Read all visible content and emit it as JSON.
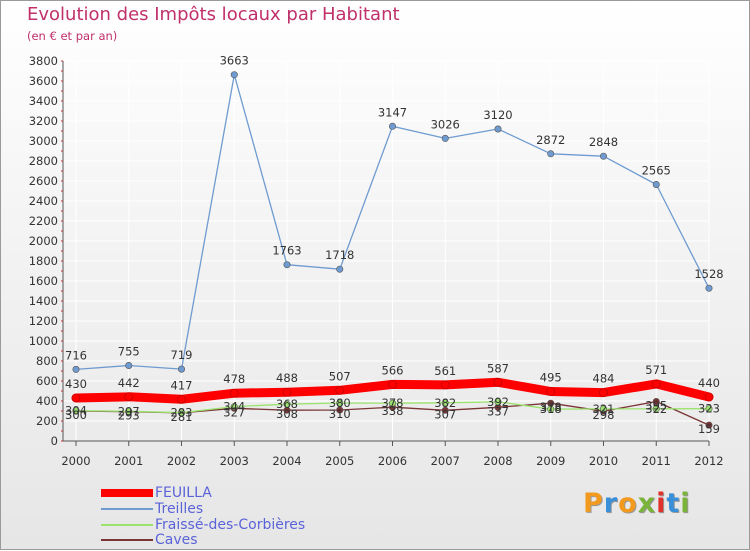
{
  "title": "Evolution des Impôts locaux par Habitant",
  "subtitle": "(en € et par an)",
  "logo": {
    "text": "Proxiti",
    "colors": [
      "#f29a1e",
      "#3a8fd9",
      "#f29a1e",
      "#7ab33a",
      "#e0322b",
      "#3a8fd9",
      "#7ab33a"
    ]
  },
  "chart_data": {
    "type": "line",
    "title": "Evolution des Impôts locaux par Habitant",
    "subtitle": "(en € et par an)",
    "x": [
      "2000",
      "2001",
      "2002",
      "2003",
      "2004",
      "2005",
      "2006",
      "2007",
      "2008",
      "2009",
      "2010",
      "2011",
      "2012"
    ],
    "ylim": [
      0,
      3800
    ],
    "yticks": [
      0,
      200,
      400,
      600,
      800,
      1000,
      1200,
      1400,
      1600,
      1800,
      2000,
      2200,
      2400,
      2600,
      2800,
      3000,
      3200,
      3400,
      3600,
      3800
    ],
    "grid": true,
    "legend_position": "bottom-left",
    "series": [
      {
        "name": "FEUILLA",
        "color": "#ff0000",
        "bold": true,
        "values": [
          430,
          442,
          417,
          478,
          488,
          507,
          566,
          561,
          587,
          495,
          484,
          571,
          440
        ],
        "labels": [
          "430",
          "442",
          "417",
          "478",
          "488",
          "507",
          "566",
          "561",
          "587",
          "495",
          "484",
          "571",
          "440"
        ]
      },
      {
        "name": "Treilles",
        "color": "#6f9bd0",
        "values": [
          716,
          755,
          719,
          3663,
          1763,
          1718,
          3147,
          3026,
          3120,
          2872,
          2848,
          2565,
          1528
        ],
        "labels": [
          "716",
          "755",
          "719",
          "3663",
          "1763",
          "1718",
          "3147",
          "3026",
          "3120",
          "2872",
          "2848",
          "2565",
          "1528"
        ]
      },
      {
        "name": "Fraissé-des-Corbières",
        "color": "#9be36e",
        "values": [
          304,
          297,
          283,
          344,
          368,
          380,
          378,
          382,
          392,
          318,
          321,
          322,
          323
        ],
        "labels": [
          "304",
          "297",
          "283",
          "344",
          "368",
          "380",
          "378",
          "382",
          "392",
          "318",
          "321",
          "322",
          "323"
        ]
      },
      {
        "name": "Caves",
        "color": "#7a3434",
        "values": [
          300,
          293,
          281,
          327,
          308,
          310,
          338,
          307,
          337,
          378,
          298,
          395,
          159
        ],
        "labels": [
          "300",
          "293",
          "281",
          "327",
          "308",
          "310",
          "338",
          "307",
          "337",
          "378",
          "298",
          "395",
          "159"
        ]
      }
    ]
  }
}
